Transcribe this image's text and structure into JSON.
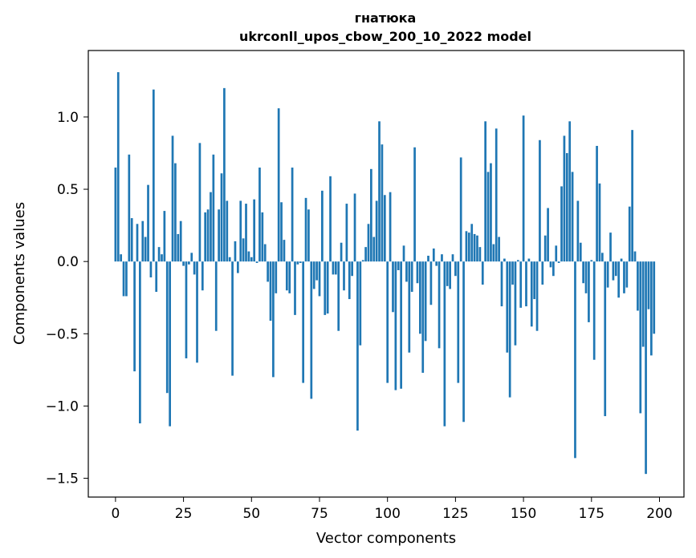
{
  "chart_data": {
    "type": "bar",
    "title": "гнатюка",
    "subtitle": "ukrconll_upos_cbow_200_10_2022 model",
    "xlabel": "Vector components",
    "ylabel": "Components values",
    "xlim": [
      -10,
      209
    ],
    "ylim": [
      -1.63,
      1.46
    ],
    "xticks": [
      0,
      25,
      50,
      75,
      100,
      125,
      150,
      175,
      200
    ],
    "xtick_labels": [
      "0",
      "25",
      "50",
      "75",
      "100",
      "125",
      "150",
      "175",
      "200"
    ],
    "yticks": [
      -1.5,
      -1.0,
      -0.5,
      0.0,
      0.5,
      1.0
    ],
    "ytick_labels": [
      "−1.5",
      "−1.0",
      "−0.5",
      "0.0",
      "0.5",
      "1.0"
    ],
    "bar_color": "#1f77b4",
    "grid": false,
    "values": [
      0.65,
      1.31,
      0.05,
      -0.24,
      -0.24,
      0.74,
      0.3,
      -0.76,
      0.26,
      -1.12,
      0.28,
      0.17,
      0.53,
      -0.11,
      1.19,
      -0.21,
      0.1,
      0.05,
      0.35,
      -0.91,
      -1.14,
      0.87,
      0.68,
      0.19,
      0.28,
      -0.03,
      -0.67,
      -0.02,
      0.06,
      -0.09,
      -0.7,
      0.82,
      -0.2,
      0.34,
      0.36,
      0.48,
      0.74,
      -0.48,
      0.36,
      0.61,
      1.2,
      0.42,
      0.03,
      -0.79,
      0.14,
      -0.08,
      0.42,
      0.16,
      0.4,
      0.07,
      0.03,
      0.43,
      -0.01,
      0.65,
      0.34,
      0.12,
      -0.14,
      -0.41,
      -0.8,
      -0.22,
      1.06,
      0.41,
      0.15,
      -0.2,
      -0.22,
      0.65,
      -0.37,
      -0.02,
      -0.01,
      -0.84,
      0.44,
      0.36,
      -0.95,
      -0.19,
      -0.13,
      -0.24,
      0.49,
      -0.37,
      -0.36,
      0.59,
      -0.09,
      -0.09,
      -0.48,
      0.13,
      -0.2,
      0.4,
      -0.26,
      -0.1,
      0.47,
      -1.17,
      -0.58,
      0.01,
      0.1,
      0.26,
      0.64,
      0.17,
      0.42,
      0.97,
      0.81,
      0.46,
      -0.84,
      0.48,
      -0.35,
      -0.89,
      -0.06,
      -0.88,
      0.11,
      -0.14,
      -0.63,
      -0.21,
      0.79,
      -0.15,
      -0.5,
      -0.77,
      -0.55,
      0.04,
      -0.3,
      0.09,
      -0.03,
      -0.6,
      0.05,
      -1.14,
      -0.17,
      -0.19,
      0.05,
      -0.1,
      -0.84,
      0.72,
      -1.11,
      0.21,
      0.2,
      0.26,
      0.19,
      0.18,
      0.1,
      -0.16,
      0.97,
      0.62,
      0.68,
      0.12,
      0.92,
      0.17,
      -0.31,
      0.02,
      -0.63,
      -0.94,
      -0.16,
      -0.58,
      0.01,
      -0.32,
      1.01,
      -0.31,
      0.02,
      -0.45,
      -0.26,
      -0.48,
      0.84,
      -0.16,
      0.18,
      0.37,
      -0.04,
      -0.1,
      0.11,
      -0.01,
      0.52,
      0.87,
      0.75,
      0.97,
      0.62,
      -1.36,
      0.42,
      0.13,
      -0.15,
      -0.22,
      -0.42,
      0.01,
      -0.68,
      0.8,
      0.54,
      0.06,
      -1.07,
      -0.18,
      0.2,
      -0.13,
      -0.1,
      -0.25,
      0.02,
      -0.22,
      -0.18,
      0.38,
      0.91,
      0.07,
      -0.34,
      -1.05,
      -0.59,
      -1.47,
      -0.33,
      -0.65,
      -0.5
    ]
  }
}
